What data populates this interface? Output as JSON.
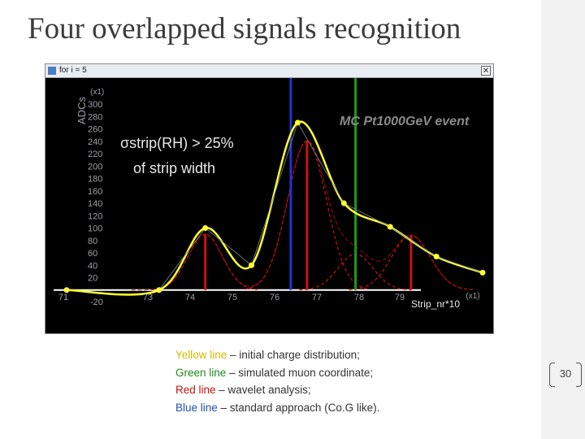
{
  "slide": {
    "title": "Four overlapped signals recognition",
    "page_number": "30"
  },
  "window": {
    "title": "for i = 5",
    "close_glyph": "✕"
  },
  "legend": [
    {
      "key": "Yellow line",
      "rest": " – initial charge distribution;",
      "color": "#d4b800"
    },
    {
      "key": "Green line",
      "rest": " – simulated muon coordinate;",
      "color": "#1e8a1e"
    },
    {
      "key": "Red line",
      "rest": " – wavelet analysis;",
      "color": "#cc1010"
    },
    {
      "key": "Blue line",
      "rest": " – standard approach (Co.G like).",
      "color": "#1f4fa8"
    }
  ],
  "colors": {
    "yellow": "#ffff33",
    "green": "#1a9a1a",
    "red": "#cc1111",
    "blue": "#2233cc",
    "background": "#000000",
    "axis_text": "#9aa0a8",
    "annotation": "#e8e8e8",
    "event_label": "#8a8a8a"
  },
  "chart_data": {
    "type": "line",
    "xlabel": "Strip_nr*10",
    "x_multiplier": "(x1)",
    "ylabel": "ADCs",
    "y_multiplier": "(x1)",
    "xlim": [
      71,
      80
    ],
    "ylim": [
      -20,
      300
    ],
    "xticks": [
      71,
      73,
      74,
      75,
      76,
      77,
      78,
      79
    ],
    "yticks": [
      -20,
      20,
      40,
      60,
      80,
      100,
      120,
      140,
      160,
      180,
      200,
      220,
      240,
      260,
      280,
      300
    ],
    "annotation_line1": "σstrip(RH) > 25%",
    "annotation_line2": "of strip width",
    "event_label": "MC Pt1000GeV event",
    "yellow_points": [
      {
        "x": 73,
        "y": 0
      },
      {
        "x": 74,
        "y": 100
      },
      {
        "x": 75,
        "y": 40
      },
      {
        "x": 76,
        "y": 270
      },
      {
        "x": 77,
        "y": 140
      },
      {
        "x": 78,
        "y": 102
      },
      {
        "x": 79,
        "y": 54
      },
      {
        "x": 80,
        "y": 28
      }
    ],
    "red_peaks": [
      {
        "mu": 74.0,
        "amp": 90,
        "sigma": 0.37
      },
      {
        "mu": 76.2,
        "amp": 240,
        "sigma": 0.42
      },
      {
        "mu": 77.25,
        "amp": 58,
        "sigma": 0.38
      },
      {
        "mu": 78.45,
        "amp": 88,
        "sigma": 0.42
      }
    ],
    "green_x": 77.25,
    "blue_x": 75.85
  }
}
